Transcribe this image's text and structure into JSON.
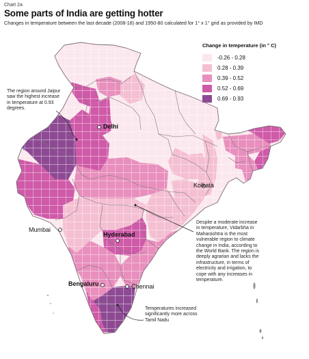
{
  "header": {
    "chart_label": "Chart 2a",
    "title": "Some parts of India are getting hotter",
    "subtitle": "Changes in temperature between the last decade (2008-18) and 1950-80 calculated for 1° x 1° grid as provided by IMD"
  },
  "legend": {
    "title": "Change in temperature (in ° C)",
    "items": [
      {
        "label": "-0.26 - 0.28",
        "color": "#fbe8ee"
      },
      {
        "label": "0.28 - 0.39",
        "color": "#f4bfd2"
      },
      {
        "label": "0.39 - 0.52",
        "color": "#e88fbd"
      },
      {
        "label": "0.52 - 0.69",
        "color": "#cf5aa8"
      },
      {
        "label": "0.69 - 0.93",
        "color": "#8d4a93"
      }
    ]
  },
  "cities": {
    "delhi": "Delhi",
    "kolkata": "Kolkata",
    "mumbai": "Mumbai",
    "hyderabad": "Hyderabad",
    "bengaluru": "Bengaluru",
    "chennai": "Chennai"
  },
  "annotations": {
    "jaipur": "The region around Jaipur saw the highest increase in temperature at 0.93 degrees.",
    "vidarbha": "Despite a moderate increase in temperature, Vidarbha in Maharashtra is the most vulnerable region to climate change in India, according to the World Bank. The region is deeply agrarian and lacks the infrastructure, in terms of electricity and irrigation, to cope with any increases in temperature.",
    "tamil_nadu": "Temperatures increased significantly more across Tamil Nadu"
  },
  "map": {
    "regions": [
      {
        "name": "kashmir",
        "level": 0
      },
      {
        "name": "himachal",
        "level": 2
      },
      {
        "name": "punjab",
        "level": 3
      },
      {
        "name": "haryana-delhi",
        "level": 3
      },
      {
        "name": "uttarakhand",
        "level": 1
      },
      {
        "name": "uttar-pradesh",
        "level": 0
      },
      {
        "name": "rajasthan-west",
        "level": 4
      },
      {
        "name": "rajasthan-east",
        "level": 3
      },
      {
        "name": "gujarat",
        "level": 3
      },
      {
        "name": "madhya-pradesh",
        "level": 2
      },
      {
        "name": "bihar",
        "level": 0
      },
      {
        "name": "jharkhand",
        "level": 1
      },
      {
        "name": "west-bengal",
        "level": 1
      },
      {
        "name": "maharashtra",
        "level": 1
      },
      {
        "name": "chhattisgarh",
        "level": 1
      },
      {
        "name": "odisha",
        "level": 1
      },
      {
        "name": "telangana",
        "level": 3
      },
      {
        "name": "andhra-pradesh",
        "level": 2
      },
      {
        "name": "karnataka",
        "level": 2
      },
      {
        "name": "goa-konkan",
        "level": 2
      },
      {
        "name": "kerala",
        "level": 3
      },
      {
        "name": "tamil-nadu",
        "level": 4
      },
      {
        "name": "sikkim",
        "level": 1
      },
      {
        "name": "assam-meghalaya",
        "level": 2
      },
      {
        "name": "arunachal",
        "level": 3
      },
      {
        "name": "nagaland-manipur",
        "level": 3
      },
      {
        "name": "tripura-mizoram",
        "level": 2
      }
    ]
  }
}
